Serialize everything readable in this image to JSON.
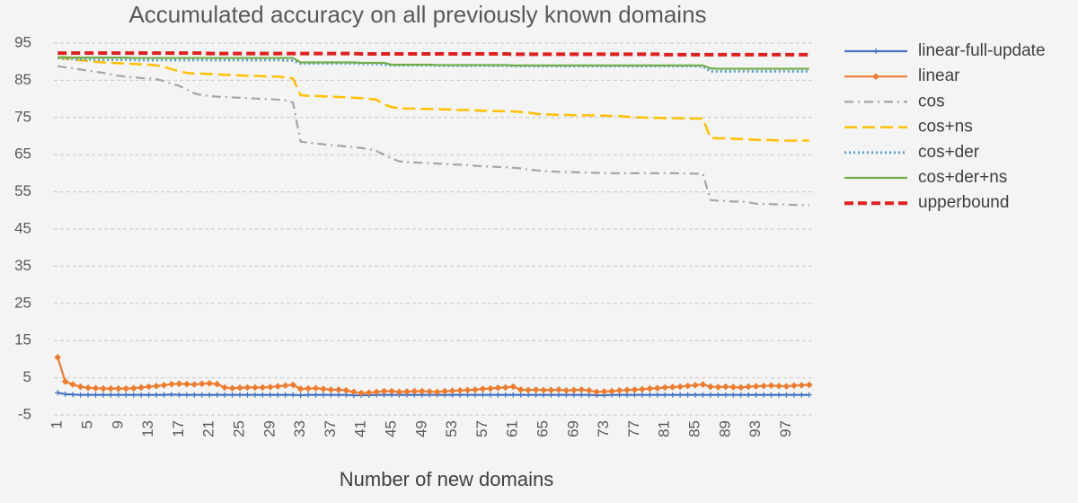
{
  "chart_data": {
    "type": "line",
    "title": "Accumulated accuracy on all previously known domains",
    "x_label": "Number of new domains",
    "grid": true,
    "legend": "right",
    "ylim": [
      -5,
      95
    ],
    "yticks": [
      -5,
      5,
      15,
      25,
      35,
      45,
      55,
      65,
      75,
      85,
      95
    ],
    "categories": [
      1,
      null,
      null,
      null,
      5,
      null,
      null,
      null,
      9,
      null,
      null,
      null,
      13,
      null,
      null,
      null,
      17,
      null,
      null,
      null,
      21,
      null,
      null,
      null,
      25,
      null,
      null,
      null,
      29,
      null,
      null,
      null,
      33,
      null,
      null,
      null,
      37,
      null,
      null,
      null,
      41,
      null,
      null,
      null,
      45,
      null,
      null,
      null,
      49,
      null,
      null,
      null,
      53,
      null,
      null,
      null,
      57,
      null,
      null,
      null,
      61,
      null,
      null,
      null,
      65,
      null,
      null,
      null,
      69,
      null,
      null,
      null,
      73,
      null,
      null,
      null,
      77,
      null,
      null,
      null,
      81,
      null,
      null,
      null,
      85,
      null,
      null,
      null,
      89,
      null,
      null,
      null,
      93,
      null,
      null,
      null,
      97,
      null,
      null,
      null
    ],
    "series": [
      {
        "name": "linear-full-update",
        "color": "#4472c4",
        "line_style": "solid",
        "marker": "plus",
        "values": [
          1.0,
          0.6,
          0.5,
          0.4,
          0.4,
          0.4,
          0.4,
          0.4,
          0.4,
          0.4,
          0.4,
          0.4,
          0.4,
          0.4,
          0.4,
          0.5,
          0.4,
          0.4,
          0.4,
          0.4,
          0.4,
          0.4,
          0.4,
          0.4,
          0.4,
          0.4,
          0.4,
          0.4,
          0.4,
          0.4,
          0.4,
          0.4,
          0.3,
          0.4,
          0.4,
          0.4,
          0.4,
          0.4,
          0.4,
          0.3,
          0.3,
          0.3,
          0.4,
          0.4,
          0.4,
          0.4,
          0.4,
          0.4,
          0.4,
          0.4,
          0.4,
          0.4,
          0.4,
          0.4,
          0.4,
          0.4,
          0.4,
          0.4,
          0.4,
          0.4,
          0.4,
          0.4,
          0.4,
          0.4,
          0.4,
          0.4,
          0.4,
          0.4,
          0.4,
          0.4,
          0.4,
          0.3,
          0.3,
          0.4,
          0.4,
          0.4,
          0.4,
          0.4,
          0.4,
          0.4,
          0.4,
          0.4,
          0.4,
          0.4,
          0.4,
          0.4,
          0.4,
          0.4,
          0.4,
          0.4,
          0.4,
          0.4,
          0.4,
          0.4,
          0.4,
          0.4,
          0.4,
          0.4,
          0.4,
          0.4
        ]
      },
      {
        "name": "linear",
        "color": "#ed7d31",
        "line_style": "solid",
        "marker": "diamond",
        "values": [
          10.5,
          4.0,
          3.2,
          2.6,
          2.3,
          2.2,
          2.1,
          2.1,
          2.1,
          2.1,
          2.2,
          2.4,
          2.6,
          2.8,
          3.0,
          3.3,
          3.4,
          3.3,
          3.2,
          3.4,
          3.5,
          3.3,
          2.4,
          2.2,
          2.3,
          2.4,
          2.4,
          2.4,
          2.5,
          2.7,
          2.9,
          3.1,
          2.0,
          2.1,
          2.2,
          2.0,
          1.8,
          1.8,
          1.6,
          1.2,
          0.9,
          1.0,
          1.2,
          1.4,
          1.4,
          1.2,
          1.3,
          1.4,
          1.4,
          1.3,
          1.2,
          1.4,
          1.5,
          1.6,
          1.7,
          1.8,
          2.0,
          2.1,
          2.3,
          2.4,
          2.6,
          1.8,
          1.7,
          1.8,
          1.7,
          1.7,
          1.8,
          1.6,
          1.7,
          1.8,
          1.6,
          1.2,
          1.3,
          1.4,
          1.6,
          1.7,
          1.8,
          1.9,
          2.1,
          2.2,
          2.4,
          2.5,
          2.6,
          2.8,
          3.0,
          3.2,
          2.6,
          2.5,
          2.6,
          2.5,
          2.4,
          2.6,
          2.7,
          2.8,
          2.9,
          2.8,
          2.7,
          2.9,
          3.0,
          3.1
        ]
      },
      {
        "name": "cos",
        "color": "#a5a5a5",
        "line_style": "dash-dot",
        "marker": "none",
        "values": [
          88.8,
          88.5,
          88.2,
          87.9,
          87.6,
          87.3,
          87.0,
          86.6,
          86.2,
          86.0,
          85.8,
          85.6,
          85.5,
          85.3,
          84.8,
          84.0,
          83.5,
          82.5,
          81.5,
          81.0,
          80.8,
          80.6,
          80.5,
          80.4,
          80.3,
          80.2,
          80.1,
          80.0,
          79.9,
          79.8,
          79.6,
          79.0,
          68.5,
          68.2,
          68.0,
          67.8,
          67.6,
          67.4,
          67.2,
          67.0,
          66.8,
          66.5,
          66.0,
          65.0,
          64.0,
          63.2,
          63.0,
          62.9,
          62.8,
          62.7,
          62.6,
          62.5,
          62.4,
          62.3,
          62.2,
          62.0,
          61.9,
          61.8,
          61.7,
          61.6,
          61.5,
          61.3,
          61.0,
          60.8,
          60.6,
          60.5,
          60.4,
          60.3,
          60.3,
          60.2,
          60.2,
          60.1,
          60.1,
          60.0,
          60.0,
          60.0,
          60.0,
          60.0,
          60.0,
          60.0,
          60.0,
          60.0,
          60.0,
          59.9,
          59.9,
          59.8,
          52.8,
          52.6,
          52.5,
          52.4,
          52.4,
          52.2,
          51.8,
          51.7,
          51.7,
          51.6,
          51.6,
          51.5,
          51.5,
          51.5
        ]
      },
      {
        "name": "cos+ns",
        "color": "#ffc000",
        "line_style": "dashed",
        "marker": "none",
        "values": [
          91.0,
          90.8,
          90.6,
          90.4,
          90.2,
          90.0,
          89.8,
          89.7,
          89.6,
          89.5,
          89.4,
          89.3,
          89.2,
          89.0,
          88.6,
          88.0,
          87.4,
          87.0,
          86.8,
          86.8,
          86.7,
          86.6,
          86.5,
          86.4,
          86.3,
          86.2,
          86.2,
          86.1,
          86.0,
          86.0,
          85.8,
          85.5,
          81.0,
          80.8,
          80.8,
          80.7,
          80.6,
          80.5,
          80.4,
          80.3,
          80.2,
          80.0,
          79.8,
          78.5,
          77.8,
          77.5,
          77.4,
          77.4,
          77.3,
          77.3,
          77.2,
          77.2,
          77.1,
          77.0,
          77.0,
          76.9,
          76.8,
          76.8,
          76.7,
          76.7,
          76.6,
          76.5,
          76.3,
          76.0,
          75.8,
          75.8,
          75.7,
          75.7,
          75.6,
          75.6,
          75.6,
          75.5,
          75.5,
          75.4,
          75.4,
          75.2,
          75.0,
          75.0,
          74.9,
          74.9,
          74.8,
          74.8,
          74.8,
          74.7,
          74.7,
          74.7,
          69.5,
          69.4,
          69.4,
          69.3,
          69.2,
          69.1,
          69.0,
          68.9,
          68.9,
          68.8,
          68.8,
          68.8,
          68.8,
          68.8
        ]
      },
      {
        "name": "cos+der",
        "color": "#5b9bd5",
        "line_style": "dotted",
        "marker": "none",
        "values": [
          91.0,
          90.8,
          90.7,
          90.6,
          90.6,
          90.5,
          90.5,
          90.5,
          90.5,
          90.5,
          90.4,
          90.4,
          90.4,
          90.4,
          90.4,
          90.4,
          90.4,
          90.4,
          90.4,
          90.4,
          90.4,
          90.4,
          90.4,
          90.4,
          90.4,
          90.4,
          90.4,
          90.4,
          90.4,
          90.4,
          90.3,
          90.3,
          89.5,
          89.5,
          89.5,
          89.5,
          89.5,
          89.5,
          89.5,
          89.5,
          89.4,
          89.4,
          89.3,
          89.2,
          89.0,
          89.0,
          89.0,
          89.0,
          89.0,
          89.0,
          88.9,
          88.9,
          88.9,
          88.9,
          88.9,
          88.9,
          88.9,
          88.9,
          88.9,
          88.9,
          88.8,
          88.8,
          88.8,
          88.8,
          88.8,
          88.8,
          88.8,
          88.8,
          88.8,
          88.8,
          88.8,
          88.8,
          88.8,
          88.8,
          88.8,
          88.8,
          88.8,
          88.8,
          88.8,
          88.8,
          88.8,
          88.8,
          88.8,
          88.8,
          88.8,
          88.7,
          87.4,
          87.4,
          87.4,
          87.4,
          87.4,
          87.4,
          87.4,
          87.4,
          87.4,
          87.4,
          87.4,
          87.4,
          87.4,
          87.4
        ]
      },
      {
        "name": "cos+der+ns",
        "color": "#70ad47",
        "line_style": "solid",
        "marker": "none",
        "values": [
          91.2,
          91.2,
          91.1,
          91.1,
          91.1,
          91.1,
          91.1,
          91.1,
          91.1,
          91.1,
          91.0,
          91.0,
          91.0,
          91.0,
          91.0,
          91.0,
          91.0,
          91.0,
          91.0,
          91.0,
          91.0,
          91.0,
          91.0,
          91.0,
          91.0,
          91.0,
          91.0,
          91.0,
          91.0,
          91.0,
          91.0,
          91.0,
          89.8,
          89.8,
          89.8,
          89.8,
          89.8,
          89.8,
          89.8,
          89.8,
          89.7,
          89.7,
          89.7,
          89.7,
          89.2,
          89.2,
          89.2,
          89.2,
          89.2,
          89.2,
          89.1,
          89.1,
          89.1,
          89.1,
          89.1,
          89.1,
          89.1,
          89.1,
          89.1,
          89.1,
          89.0,
          89.0,
          89.0,
          89.0,
          89.0,
          89.0,
          89.0,
          89.0,
          89.0,
          89.0,
          89.0,
          89.0,
          89.0,
          89.0,
          89.0,
          89.0,
          89.0,
          89.0,
          89.0,
          89.0,
          89.0,
          89.0,
          89.0,
          89.0,
          89.0,
          89.0,
          88.2,
          88.1,
          88.1,
          88.1,
          88.1,
          88.1,
          88.1,
          88.1,
          88.1,
          88.1,
          88.1,
          88.1,
          88.1,
          88.1
        ]
      },
      {
        "name": "upperbound",
        "color": "#e02020",
        "line_style": "thick-dashed",
        "marker": "none",
        "values": [
          92.3,
          92.3,
          92.3,
          92.3,
          92.3,
          92.3,
          92.3,
          92.3,
          92.3,
          92.3,
          92.3,
          92.3,
          92.3,
          92.3,
          92.3,
          92.3,
          92.3,
          92.3,
          92.3,
          92.3,
          92.2,
          92.2,
          92.2,
          92.2,
          92.2,
          92.2,
          92.2,
          92.2,
          92.2,
          92.2,
          92.2,
          92.2,
          92.2,
          92.2,
          92.2,
          92.2,
          92.2,
          92.2,
          92.2,
          92.2,
          92.1,
          92.1,
          92.1,
          92.1,
          92.1,
          92.1,
          92.1,
          92.1,
          92.1,
          92.1,
          92.1,
          92.1,
          92.1,
          92.1,
          92.1,
          92.1,
          92.1,
          92.1,
          92.1,
          92.1,
          92.0,
          92.0,
          92.0,
          92.0,
          92.0,
          92.0,
          92.0,
          92.0,
          92.0,
          92.0,
          92.0,
          92.0,
          92.0,
          92.0,
          92.0,
          92.0,
          92.0,
          92.0,
          92.0,
          92.0,
          91.9,
          91.9,
          91.9,
          91.9,
          91.9,
          91.9,
          91.9,
          91.9,
          91.9,
          91.9,
          91.9,
          91.9,
          91.9,
          91.9,
          91.9,
          91.9,
          91.9,
          91.9,
          91.9,
          91.9
        ]
      }
    ]
  }
}
